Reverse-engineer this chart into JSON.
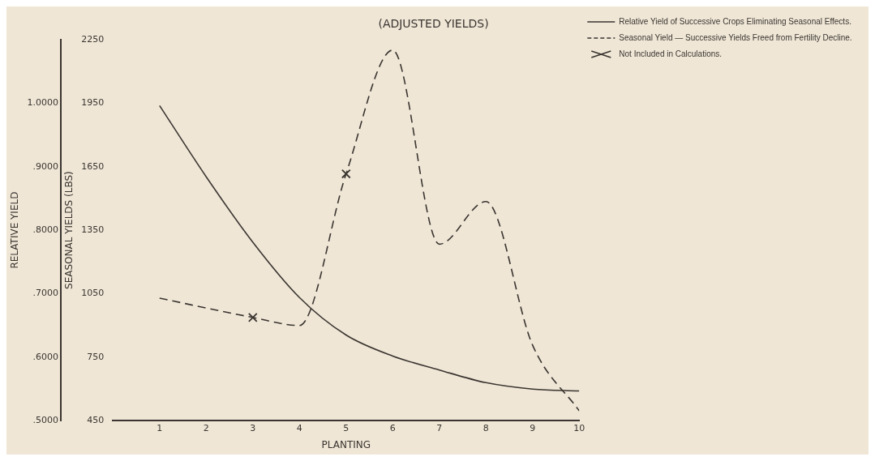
{
  "chart_data": {
    "type": "line",
    "title": "(ADJUSTED YIELDS)",
    "xlabel": "PLANTING",
    "ylabel": "RELATIVE YIELD",
    "y2label": "SEASONAL YIELDS (LBS)",
    "xlim": [
      0,
      10
    ],
    "xticks": [
      1,
      2,
      3,
      4,
      5,
      6,
      7,
      8,
      9,
      10
    ],
    "ylim": [
      0.5,
      1.1
    ],
    "yticks": [
      {
        "value": 0.5,
        "label": ".5000"
      },
      {
        "value": 0.6,
        "label": ".6000"
      },
      {
        "value": 0.7,
        "label": ".7000"
      },
      {
        "value": 0.8,
        "label": ".8000"
      },
      {
        "value": 0.9,
        "label": ".9000"
      },
      {
        "value": 1.0,
        "label": "1.0000"
      }
    ],
    "y2lim": [
      450,
      2250
    ],
    "y2ticks": [
      450,
      750,
      1050,
      1350,
      1650,
      1950,
      2250
    ],
    "grid": false,
    "legend": "top right",
    "series": [
      {
        "name": "Relative Yield of Successive Crops Eliminating Seasonal Effects.",
        "color": "#3a3530",
        "type": "line",
        "line_style": "solid",
        "marker": "none",
        "x": [
          1,
          2,
          3,
          4,
          5,
          6,
          7,
          8,
          9,
          10
        ],
        "values": [
          0.996,
          0.884,
          0.781,
          0.694,
          0.635,
          0.602,
          0.58,
          0.56,
          0.55,
          0.547
        ]
      },
      {
        "name": "Seasonal Yield — Successive Yields Freed from Fertility Decline.",
        "color": "#3a3530",
        "type": "line",
        "axis": "y2",
        "line_style": "dashed",
        "marker": "none",
        "x": [
          1,
          3,
          4,
          5,
          6,
          7,
          8,
          9,
          10
        ],
        "values": [
          1029,
          938,
          900,
          1616,
          2200,
          1284,
          1485,
          807,
          497
        ]
      },
      {
        "name": "Not Included in Calculations.",
        "color": "#3a3530",
        "type": "scatter",
        "axis": "y2",
        "marker": "cross",
        "x": [
          3,
          5
        ],
        "values": [
          938,
          1616
        ]
      }
    ]
  }
}
